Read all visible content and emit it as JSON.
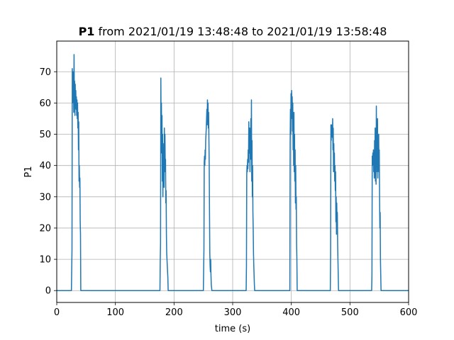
{
  "chart_data": {
    "type": "line",
    "title_bold": "P1",
    "title_rest": " from 2021/01/19 13:48:48 to 2021/01/19 13:58:48",
    "xlabel": "time (s)",
    "ylabel": "P1",
    "xlim": [
      0,
      600
    ],
    "ylim": [
      -3.8,
      79.8
    ],
    "xticks": [
      "0",
      "100",
      "200",
      "300",
      "400",
      "500",
      "600"
    ],
    "yticks": [
      "0",
      "10",
      "20",
      "30",
      "40",
      "50",
      "60",
      "70"
    ],
    "grid": true,
    "legend": "none",
    "line_color": "#1f77b4",
    "series": [
      {
        "x": [
          0,
          25,
          26,
          26.5,
          27,
          27.5,
          28,
          28.5,
          29,
          29.5,
          30,
          30.5,
          31,
          31.5,
          32,
          32.5,
          33,
          33.5,
          34,
          34.5,
          35,
          35.5,
          36,
          36.5,
          37,
          37.5,
          38,
          38.5,
          39,
          39.5,
          40,
          40.5,
          41,
          176,
          176.5,
          177,
          177.5,
          178,
          178.5,
          179,
          179.5,
          180,
          180.5,
          181,
          181.5,
          182,
          182.5,
          183,
          183.5,
          184,
          184.5,
          185,
          185.5,
          186,
          186.5,
          187,
          187.5,
          188,
          188.5,
          189,
          189.5,
          190,
          190.5,
          250,
          251,
          251.5,
          252,
          252.5,
          253,
          253.5,
          254,
          254.5,
          255,
          255.5,
          256,
          256.5,
          257,
          257.5,
          258,
          258.5,
          259,
          259.5,
          260,
          260.5,
          261,
          261.5,
          262,
          262.5,
          263,
          263.5,
          264,
          264.5,
          265,
          323,
          323.5,
          324,
          324.5,
          325,
          325.5,
          326,
          326.5,
          327,
          327.5,
          328,
          328.5,
          329,
          329.5,
          330,
          330.5,
          331,
          331.5,
          332,
          332.5,
          333,
          333.5,
          334,
          334.5,
          335,
          335.5,
          336,
          336.5,
          337,
          337.5,
          397,
          397.5,
          398,
          398.5,
          399,
          399.5,
          400,
          400.5,
          401,
          401.5,
          402,
          402.5,
          403,
          403.5,
          404,
          404.5,
          405,
          405.5,
          406,
          406.5,
          407,
          407.5,
          408,
          408.5,
          409,
          409.5,
          410,
          466,
          466.5,
          467,
          467.5,
          468,
          468.5,
          469,
          469.5,
          470,
          470.5,
          471,
          471.5,
          472,
          472.5,
          473,
          473.5,
          474,
          474.5,
          475,
          475.5,
          476,
          476.5,
          477,
          477.5,
          478,
          478.5,
          479,
          479.5,
          480,
          480.5,
          481,
          537,
          537.5,
          538,
          538.5,
          539,
          539.5,
          540,
          540.5,
          541,
          541.5,
          542,
          542.5,
          543,
          543.5,
          544,
          544.5,
          545,
          545.5,
          546,
          546.5,
          547,
          547.5,
          548,
          548.5,
          549,
          549.5,
          550,
          550.5,
          551,
          551.5,
          552,
          552.5,
          553,
          600
        ],
        "y": [
          0,
          0,
          13,
          71,
          60,
          70,
          64,
          68,
          57,
          75.5,
          62,
          67,
          56,
          66,
          59,
          64,
          58,
          62,
          56,
          61,
          55,
          60,
          52,
          57,
          45,
          54,
          35,
          40,
          33,
          36,
          22,
          18,
          0,
          0,
          10,
          15,
          68,
          50,
          60,
          44,
          56,
          35,
          50,
          30,
          45,
          36,
          47,
          33,
          52,
          38,
          50,
          40,
          42,
          28,
          32,
          18,
          12,
          10,
          8,
          6,
          4,
          0,
          0,
          0,
          13,
          41,
          43,
          40,
          45,
          42,
          48,
          50,
          52,
          55,
          58,
          53,
          61,
          56,
          60,
          52,
          57,
          48,
          40,
          25,
          12,
          8,
          6,
          10,
          5,
          2,
          1,
          0,
          0,
          0,
          8,
          37,
          40,
          38,
          42,
          39,
          45,
          41,
          54,
          44,
          48,
          52,
          38,
          47,
          43,
          55,
          42,
          61,
          35,
          48,
          30,
          40,
          25,
          20,
          12,
          8,
          5,
          2,
          0,
          0,
          0,
          47,
          58,
          50,
          63,
          55,
          64,
          58,
          62,
          51,
          60,
          45,
          55,
          40,
          57,
          38,
          50,
          35,
          45,
          28,
          40,
          26,
          30,
          15,
          10,
          0,
          0,
          0,
          12,
          53,
          48,
          53,
          50,
          52,
          49,
          55,
          45,
          52,
          38,
          47,
          40,
          44,
          35,
          40,
          32,
          38,
          22,
          30,
          18,
          28,
          20,
          25,
          15,
          10,
          5,
          0,
          0,
          0,
          5,
          43,
          40,
          44,
          41,
          45,
          38,
          42,
          36,
          48,
          40,
          52,
          35,
          50,
          34,
          59,
          40,
          52,
          38,
          55,
          36,
          47,
          42,
          50,
          38,
          45,
          30,
          20,
          25,
          10,
          5,
          0,
          0
        ]
      }
    ]
  }
}
